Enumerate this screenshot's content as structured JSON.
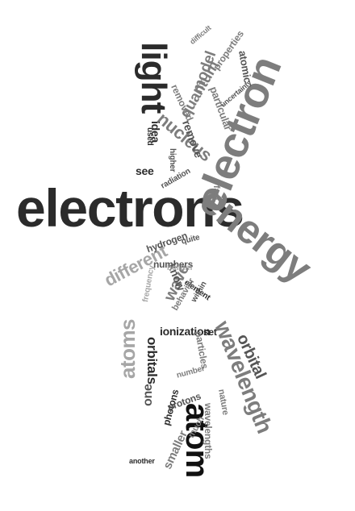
{
  "words": {
    "electrons": "electrons",
    "electron": "electron",
    "energy": "energy",
    "light": "light",
    "atom": "atom",
    "wavelength": "wavelength",
    "atoms": "atoms",
    "orbital": "orbital",
    "nucleus": "nucleus",
    "different": "different",
    "quantum": "quantum",
    "model": "model",
    "atomic": "atomic",
    "orbitals": "orbitals",
    "ionization": "ionization",
    "wave": "wave",
    "remove": "remove",
    "idea": "idea",
    "see": "see",
    "hydrogen": "hydrogen",
    "numbers": "numbers",
    "know": "know",
    "one": "one",
    "element": "element",
    "photons": "photons",
    "protons": "protons",
    "smaller": "smaller",
    "particles": "particles",
    "another": "another",
    "helium": "helium",
    "particular": "particular",
    "properties": "properties",
    "removed": "removed",
    "uncertainty": "uncertainty",
    "fact": "fact",
    "radiation": "radiation",
    "behavior": "behavior",
    "wavelengths": "wavelengths",
    "nature": "nature",
    "frequency": "frequency",
    "set": "set",
    "number": "number",
    "used": "used",
    "quite": "quite",
    "difficult": "difficult",
    "within": "within",
    "much": "much",
    "higher": "higher"
  }
}
